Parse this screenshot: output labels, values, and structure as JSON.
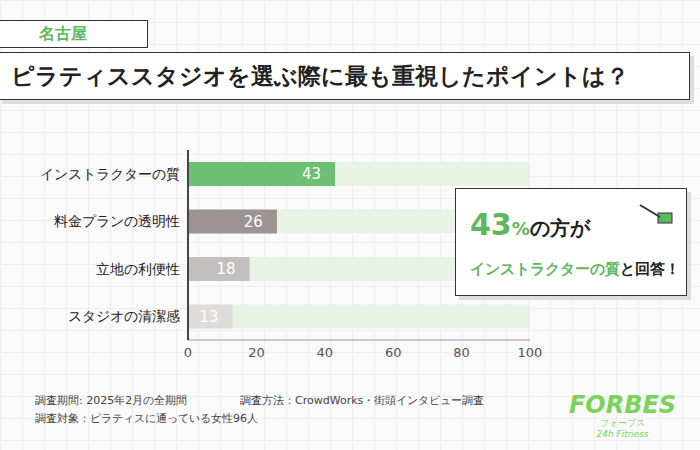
{
  "chart_data": {
    "type": "bar",
    "tag": "名古屋",
    "title": "ピラティススタジオを選ぶ際に最も重視したポイントは？",
    "orientation": "horizontal",
    "categories": [
      "インストラクターの質",
      "料金プランの透明性",
      "立地の利便性",
      "スタジオの清潔感"
    ],
    "values": [
      43,
      26,
      18,
      13
    ],
    "colors": [
      "#6cbf73",
      "#9d9393",
      "#c3bfbf",
      "#dedbdb"
    ],
    "xlim": [
      0,
      100
    ],
    "xticks": [
      0,
      20,
      40,
      60,
      80,
      100
    ],
    "grid": false,
    "data_labels": true,
    "annotations": [
      "43%の方が",
      "インストラクターの質と回答！"
    ],
    "notes": [
      "調査期間: 2025年2月の全期間",
      "調査方法：CrowdWorks・街頭インタビュー調査",
      "調査対象：ピラティスに通っている女性96人"
    ],
    "logo": [
      "FORBES",
      "フォーブス",
      "24h Fitness"
    ]
  }
}
